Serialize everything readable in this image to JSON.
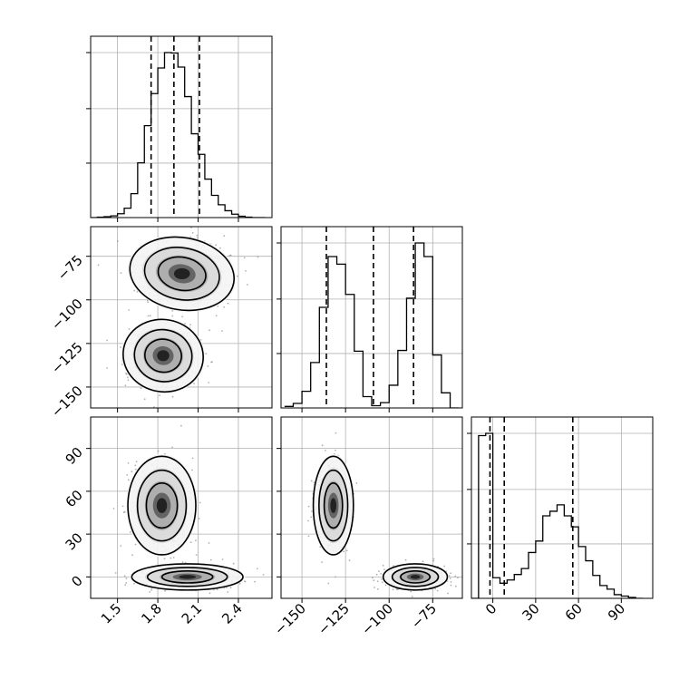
{
  "chart_data": {
    "type": "corner",
    "parameters": [
      "",
      "",
      ""
    ],
    "axes": {
      "p0": {
        "range": [
          1.3,
          2.65
        ],
        "ticks": [
          1.5,
          1.8,
          2.1,
          2.4
        ],
        "tick_labels": [
          "1.5",
          "1.8",
          "2.1",
          "2.4"
        ]
      },
      "p1": {
        "range": [
          -162,
          -58
        ],
        "ticks": [
          -75,
          -100,
          -125,
          -150
        ],
        "tick_labels": [
          "−75",
          "−100",
          "−125",
          "−150"
        ]
      },
      "p2": {
        "range": [
          -15,
          112
        ],
        "ticks": [
          0,
          30,
          60,
          90
        ],
        "tick_labels": [
          "0",
          "30",
          "60",
          "90"
        ]
      }
    },
    "histograms": [
      {
        "param": "p0",
        "bin_edges": [
          1.3,
          1.35,
          1.4,
          1.45,
          1.5,
          1.55,
          1.6,
          1.65,
          1.7,
          1.75,
          1.8,
          1.85,
          1.9,
          1.95,
          2.0,
          2.05,
          2.1,
          2.15,
          2.2,
          2.25,
          2.3,
          2.35,
          2.4,
          2.45,
          2.5,
          2.55,
          2.6
        ],
        "counts": [
          0,
          1,
          2,
          4,
          9,
          22,
          56,
          128,
          215,
          290,
          350,
          386,
          385,
          352,
          283,
          196,
          148,
          90,
          52,
          30,
          16,
          8,
          3,
          1,
          0,
          0
        ],
        "quantiles": [
          1.75,
          1.92,
          2.11
        ]
      },
      {
        "param": "p1",
        "bin_edges": [
          -160,
          -155,
          -150,
          -145,
          -140,
          -135,
          -130,
          -125,
          -120,
          -115,
          -110,
          -105,
          -100,
          -95,
          -90,
          -85,
          -80,
          -75,
          -70,
          -65,
          -60
        ],
        "counts": [
          2,
          6,
          22,
          60,
          133,
          200,
          190,
          150,
          75,
          15,
          3,
          7,
          30,
          76,
          145,
          218,
          200,
          70,
          20,
          0
        ],
        "quantiles": [
          -136,
          -109,
          -86
        ]
      },
      {
        "param": "p2",
        "bin_edges": [
          -15,
          -10,
          -5,
          0,
          5,
          10,
          15,
          20,
          25,
          30,
          35,
          40,
          45,
          50,
          55,
          60,
          65,
          70,
          75,
          80,
          85,
          90,
          95,
          100,
          105
        ],
        "counts": [
          0,
          355,
          360,
          45,
          33,
          40,
          52,
          65,
          100,
          125,
          180,
          190,
          204,
          180,
          156,
          113,
          82,
          50,
          28,
          20,
          8,
          5,
          2,
          0
        ],
        "quantiles": [
          -2,
          8,
          56
        ]
      }
    ],
    "joint_distributions": [
      {
        "x": "p0",
        "y": "p1",
        "modes": [
          {
            "x": 1.98,
            "y": -85,
            "sx": 0.17,
            "sy": 9
          },
          {
            "x": 1.84,
            "y": -132,
            "sx": 0.13,
            "sy": 9
          }
        ]
      },
      {
        "x": "p0",
        "y": "p2",
        "modes": [
          {
            "x": 1.83,
            "y": 50,
            "sx": 0.11,
            "sy": 15
          },
          {
            "x": 2.02,
            "y": 0,
            "sx": 0.18,
            "sy": 4
          }
        ]
      },
      {
        "x": "p1",
        "y": "p2",
        "modes": [
          {
            "x": -132,
            "y": 50,
            "sx": 5,
            "sy": 15
          },
          {
            "x": -85,
            "y": 0,
            "sx": 8,
            "sy": 4
          }
        ]
      }
    ],
    "quantile_line_style": "dashed",
    "grid": true
  }
}
